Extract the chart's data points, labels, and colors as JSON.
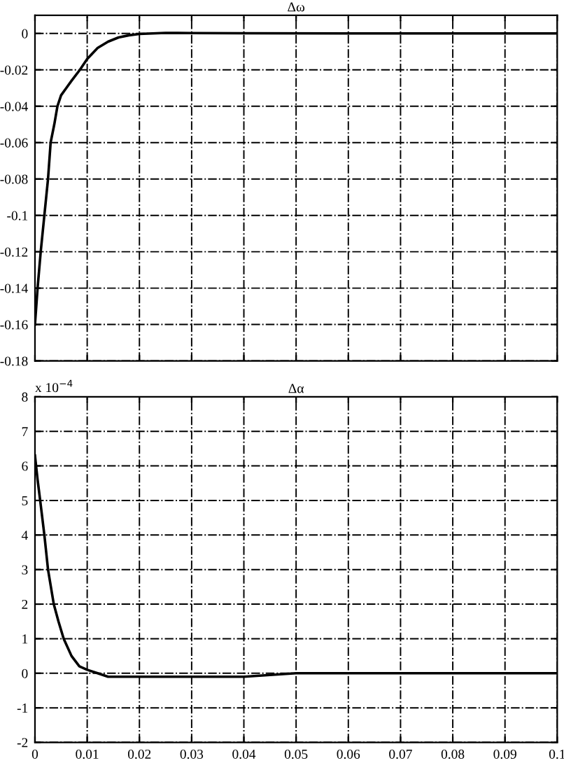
{
  "chart_data": [
    {
      "type": "line",
      "title": "Δω",
      "xlim": [
        0,
        0.1
      ],
      "xticks": [
        0,
        0.01,
        0.02,
        0.03,
        0.04,
        0.05,
        0.06,
        0.07,
        0.08,
        0.09,
        0.1
      ],
      "ylim": [
        -0.18,
        0.01
      ],
      "yticks": [
        -0.18,
        -0.16,
        -0.14,
        -0.12,
        -0.1,
        -0.08,
        -0.06,
        -0.04,
        -0.02,
        0
      ],
      "grid": true,
      "line_style": "solid",
      "tick_labels": "y",
      "series": [
        {
          "color": "#000000",
          "x": [
            0,
            0.0005,
            0.0011,
            0.0018,
            0.0025,
            0.003,
            0.0037,
            0.0043,
            0.005,
            0.006,
            0.007,
            0.0086,
            0.01,
            0.012,
            0.014,
            0.016,
            0.018,
            0.02,
            0.025,
            0.03,
            0.04,
            0.06,
            0.08,
            0.1
          ],
          "values": [
            -0.16,
            -0.14,
            -0.12,
            -0.1,
            -0.08,
            -0.06,
            -0.05,
            -0.04,
            -0.034,
            -0.03,
            -0.026,
            -0.02,
            -0.014,
            -0.008,
            -0.0045,
            -0.0022,
            -0.001,
            -0.0003,
            0.0003,
            0.0002,
            0.0001,
            0,
            0,
            0
          ]
        }
      ]
    },
    {
      "type": "line",
      "title": "Δα",
      "annotations": [
        "x 10$^{−4}$"
      ],
      "xlim": [
        0,
        0.1
      ],
      "xticks": [
        0,
        0.01,
        0.02,
        0.03,
        0.04,
        0.05,
        0.06,
        0.07,
        0.08,
        0.09,
        0.1
      ],
      "ylim": [
        -2,
        8
      ],
      "yticks": [
        -2,
        -1,
        0,
        1,
        2,
        3,
        4,
        5,
        6,
        7,
        8
      ],
      "grid": true,
      "line_style": "solid",
      "series": [
        {
          "color": "#000000",
          "x": [
            0,
            0.0005,
            0.001,
            0.0018,
            0.0025,
            0.0036,
            0.0045,
            0.0055,
            0.007,
            0.0085,
            0.01,
            0.012,
            0.014,
            0.017,
            0.02,
            0.025,
            0.03,
            0.04,
            0.05,
            0.06,
            0.08,
            0.1
          ],
          "values": [
            6.3,
            5.6,
            5,
            4,
            3,
            2,
            1.5,
            1,
            0.5,
            0.2,
            0.1,
            0,
            -0.1,
            -0.1,
            -0.1,
            -0.1,
            -0.1,
            -0.1,
            0,
            0,
            0,
            0
          ]
        }
      ]
    }
  ]
}
